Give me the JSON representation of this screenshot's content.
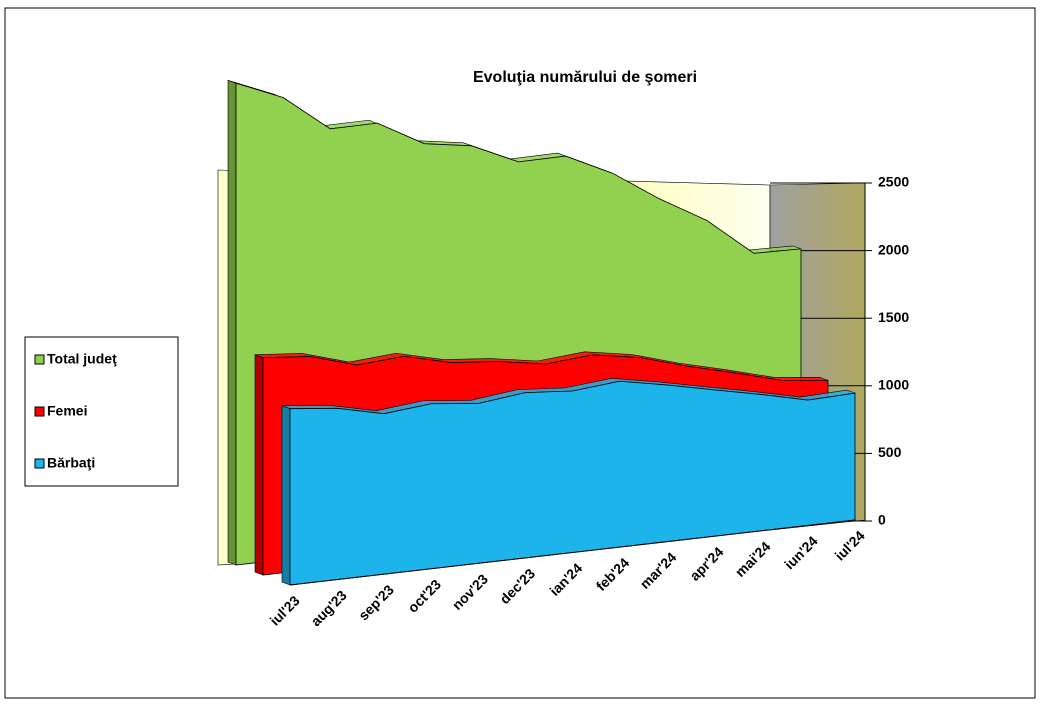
{
  "chart_data": {
    "type": "area3d",
    "title": "Evoluţia numărului de şomeri",
    "categories": [
      "iul'23",
      "aug'23",
      "sep'23",
      "oct'23",
      "nov'23",
      "dec'23",
      "ian'24",
      "feb'24",
      "mar'24",
      "apr'24",
      "mai'24",
      "iun'24",
      "iul'24"
    ],
    "series": [
      {
        "name": "Total judeţ",
        "color": "#92d050",
        "values": [
          2350,
          2320,
          2200,
          2270,
          2200,
          2230,
          2180,
          2260,
          2200,
          2080,
          1980,
          1790,
          1860
        ]
      },
      {
        "name": "Femei",
        "color": "#ff0000",
        "values": [
          1060,
          1070,
          1030,
          1080,
          1050,
          1060,
          1050,
          1110,
          1100,
          1050,
          1010,
          960,
          960
        ]
      },
      {
        "name": "Bărbaţi",
        "color": "#1cb4ea",
        "values": [
          860,
          860,
          830,
          880,
          880,
          940,
          950,
          1010,
          990,
          960,
          930,
          890,
          940
        ]
      }
    ],
    "ylim": [
      0,
      2500
    ],
    "yticks": [
      0,
      500,
      1000,
      1500,
      2000,
      2500
    ],
    "grid": true,
    "legend": "left"
  }
}
